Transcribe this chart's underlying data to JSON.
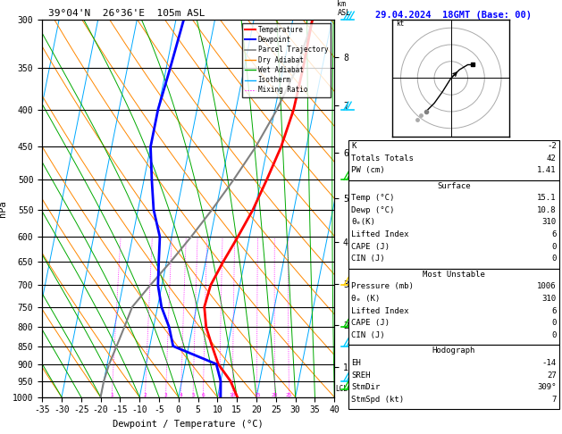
{
  "title_left": "39°04'N  26°36'E  105m ASL",
  "title_right": "29.04.2024  18GMT (Base: 00)",
  "xlabel": "Dewpoint / Temperature (°C)",
  "ylabel_left": "hPa",
  "xlim": [
    -35,
    40
  ],
  "pressure_levels": [
    300,
    350,
    400,
    450,
    500,
    550,
    600,
    650,
    700,
    750,
    800,
    850,
    900,
    950,
    1000
  ],
  "temp_x": [
    15.0,
    15.1,
    14.8,
    13.5,
    11.5,
    9.5,
    7.0,
    4.5,
    2.5,
    2.0,
    3.5,
    6.0,
    8.5,
    12.5,
    15.1
  ],
  "temp_p": [
    300,
    350,
    400,
    450,
    500,
    550,
    600,
    650,
    700,
    750,
    800,
    850,
    900,
    950,
    1000
  ],
  "dewp_x": [
    -18,
    -19,
    -20,
    -20,
    -18,
    -16,
    -13,
    -12,
    -11,
    -9,
    -6,
    -4,
    8,
    10,
    10.8
  ],
  "dewp_p": [
    300,
    350,
    400,
    450,
    500,
    550,
    600,
    650,
    700,
    750,
    800,
    850,
    900,
    950,
    1000
  ],
  "parcel_x": [
    15.1,
    13.5,
    10.5,
    7.0,
    3.0,
    -1.0,
    -5.0,
    -9.0,
    -13.0,
    -16.5,
    -17.5,
    -18.5,
    -19.5,
    -20.0,
    -20.0
  ],
  "parcel_p": [
    300,
    350,
    400,
    450,
    500,
    550,
    600,
    650,
    700,
    750,
    800,
    850,
    900,
    950,
    1000
  ],
  "color_temp": "#ff0000",
  "color_dewp": "#0000ff",
  "color_parcel": "#808080",
  "color_dry_adiabat": "#ff8800",
  "color_wet_adiabat": "#00aa00",
  "color_isotherm": "#00aaff",
  "color_mix_ratio": "#ff00ff",
  "skew_factor": 37,
  "mix_ratio_values": [
    1,
    2,
    3,
    4,
    5,
    6,
    8,
    10,
    15,
    20,
    25
  ],
  "km_ticks": [
    1,
    2,
    3,
    4,
    5,
    6,
    7,
    8
  ],
  "km_pressures": [
    908,
    795,
    697,
    609,
    530,
    459,
    395,
    338
  ],
  "stats": {
    "K": -2,
    "Totals_Totals": 42,
    "PW_cm": 1.41,
    "Surf_Temp": 15.1,
    "Surf_Dewp": 10.8,
    "Surf_ThetaE": 310,
    "Surf_LI": 6,
    "Surf_CAPE": 0,
    "Surf_CIN": 0,
    "MU_Pressure": 1006,
    "MU_ThetaE": 310,
    "MU_LI": 6,
    "MU_CAPE": 0,
    "MU_CIN": 0,
    "EH": -14,
    "SREH": 27,
    "StmDir": 309,
    "StmSpd": 7
  },
  "wind_flags": [
    {
      "p": 300,
      "color": "#00ccff",
      "shape": "barb_up",
      "km": 8
    },
    {
      "p": 400,
      "color": "#00ccff",
      "shape": "barb_up",
      "km": 7
    },
    {
      "p": 500,
      "color": "#00cc00",
      "shape": "barb_left",
      "km": 6
    },
    {
      "p": 600,
      "color": "#00cc00",
      "shape": "barb_left",
      "km": 5
    },
    {
      "p": 700,
      "color": "#ffff00",
      "shape": "barb_left",
      "km": 4
    },
    {
      "p": 800,
      "color": "#00cc00",
      "shape": "barb_left",
      "km": 3
    },
    {
      "p": 850,
      "color": "#00ccff",
      "shape": "barb_left",
      "km": 2
    },
    {
      "p": 900,
      "color": "#00ccff",
      "shape": "barb_left",
      "km": 1
    },
    {
      "p": 950,
      "color": "#00cc00",
      "shape": "barb_left",
      "km": 1
    }
  ]
}
